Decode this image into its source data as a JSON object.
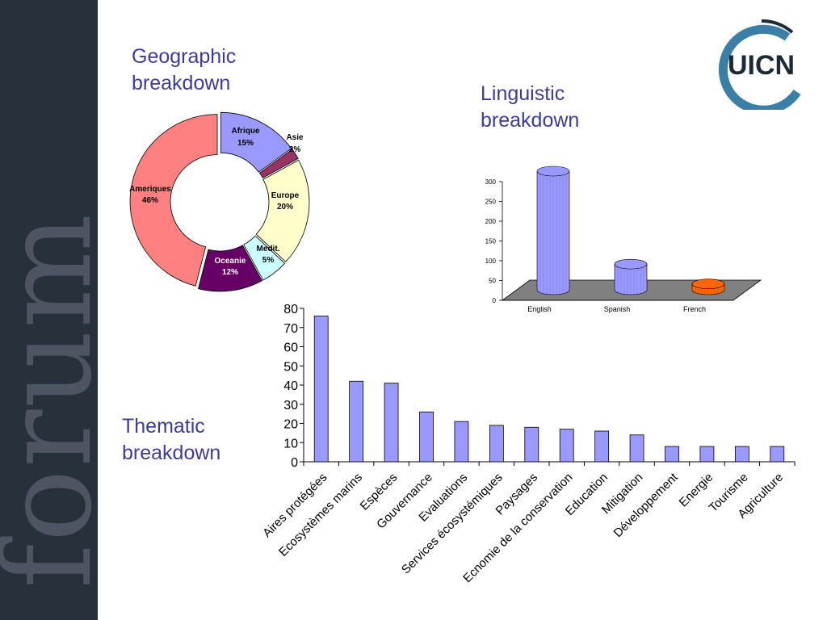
{
  "sidebar": {
    "watermark": "forum"
  },
  "logo": {
    "text": "UICN"
  },
  "headings": {
    "geographic": "Geographic breakdown",
    "linguistic": "Linguistic breakdown",
    "thematic": "Thematic breakdown"
  },
  "colors": {
    "sidebar": "#27313b",
    "heading": "#3c3c9c",
    "bar": "#9999ff",
    "logo_text": "#1d2a35",
    "logo_arc": "#3c7fa6"
  },
  "chart_data": [
    {
      "type": "pie",
      "variant": "donut",
      "slices": [
        {
          "label": "Afrique",
          "value": 15,
          "pct_label": "15%",
          "color": "#9999ff"
        },
        {
          "label": "Asie",
          "value": 2,
          "pct_label": "2%",
          "color": "#993366"
        },
        {
          "label": "Europe",
          "value": 20,
          "pct_label": "20%",
          "color": "#ffffcc"
        },
        {
          "label": "Medit.",
          "value": 5,
          "pct_label": "5%",
          "color": "#ccffff"
        },
        {
          "label": "Oceanie",
          "value": 12,
          "pct_label": "12%",
          "color": "#660066"
        },
        {
          "label": "Ameriques",
          "value": 46,
          "pct_label": "46%",
          "color": "#ff8080"
        }
      ]
    },
    {
      "type": "bar",
      "style": "3d-cylinder",
      "categories": [
        "English",
        "Spanish",
        "French"
      ],
      "values": [
        300,
        65,
        15
      ],
      "colors": [
        "#9999ff",
        "#9999ff",
        "#ff6600"
      ],
      "ylim": [
        0,
        300
      ],
      "yticks": [
        0,
        50,
        100,
        150,
        200,
        250,
        300
      ],
      "grid": false
    },
    {
      "type": "bar",
      "categories": [
        "Aires protégées",
        "Ecosystèmes marins",
        "Espèces",
        "Gouvernance",
        "Evaluations",
        "Services écosystémiques",
        "Paysages",
        "Ecnomie de la conservation",
        "Education",
        "Mitigation",
        "Développement",
        "Energie",
        "Tourisme",
        "Agriculture"
      ],
      "values": [
        76,
        42,
        41,
        26,
        21,
        19,
        18,
        17,
        16,
        14,
        8,
        8,
        8,
        8
      ],
      "ylim": [
        0,
        80
      ],
      "yticks": [
        0,
        10,
        20,
        30,
        40,
        50,
        60,
        70,
        80
      ],
      "grid": false
    }
  ]
}
